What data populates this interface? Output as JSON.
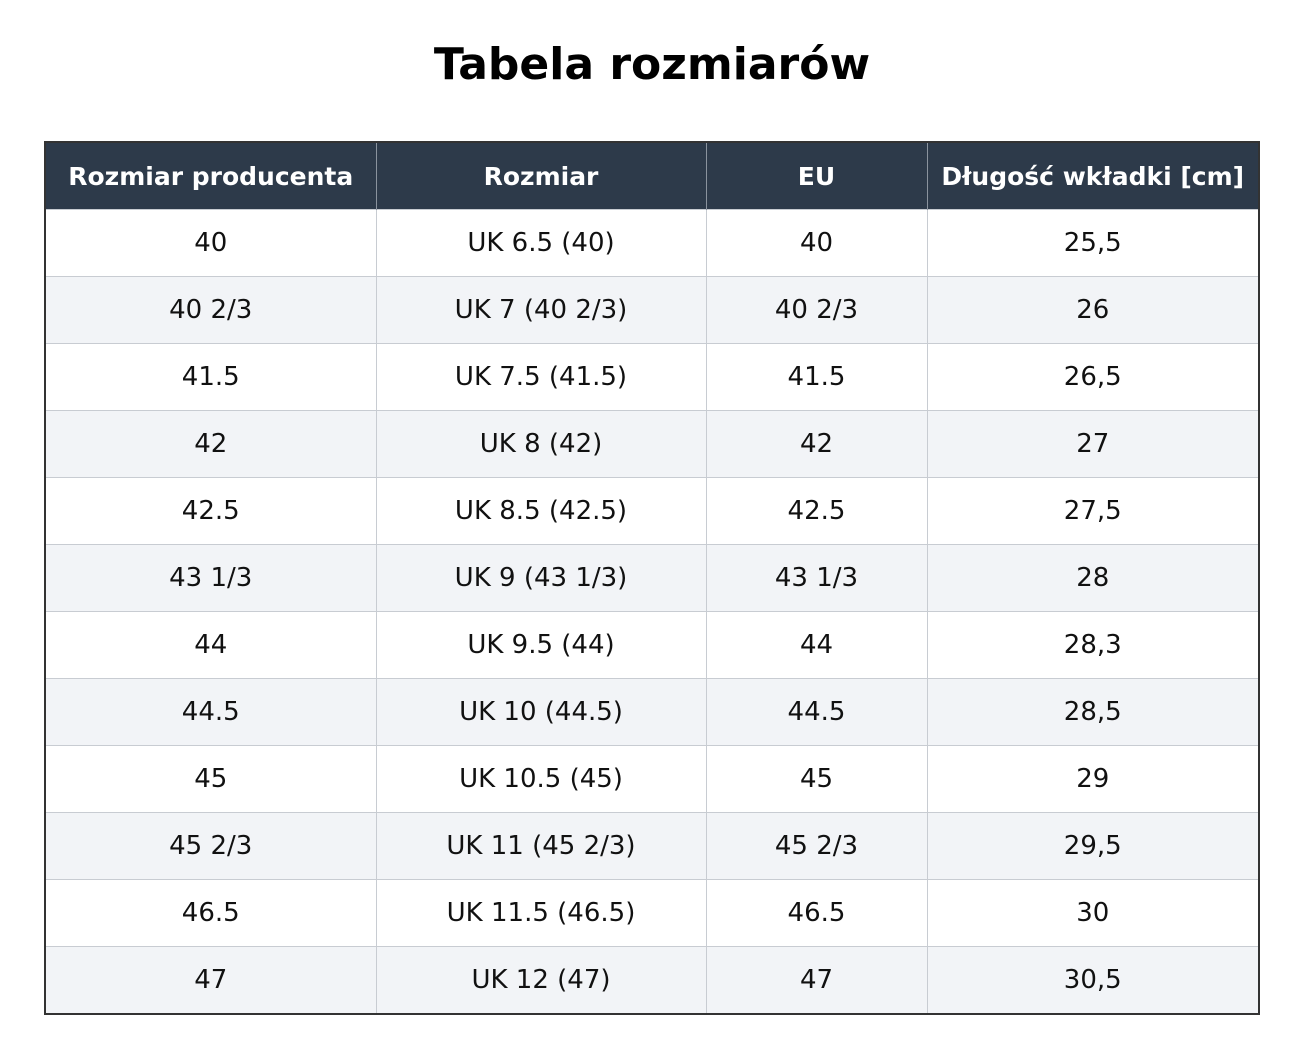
{
  "header": {
    "title": "Tabela rozmiarów"
  },
  "table": {
    "columns": [
      "Rozmiar producenta",
      "Rozmiar",
      "EU",
      "Długość wkładki [cm]"
    ],
    "rows": [
      [
        "40",
        "UK 6.5 (40)",
        "40",
        "25,5"
      ],
      [
        "40 2/3",
        "UK 7 (40 2/3)",
        "40 2/3",
        "26"
      ],
      [
        "41.5",
        "UK 7.5 (41.5)",
        "41.5",
        "26,5"
      ],
      [
        "42",
        "UK 8 (42)",
        "42",
        "27"
      ],
      [
        "42.5",
        "UK 8.5 (42.5)",
        "42.5",
        "27,5"
      ],
      [
        "43 1/3",
        "UK 9 (43 1/3)",
        "43 1/3",
        "28"
      ],
      [
        "44",
        "UK 9.5 (44)",
        "44",
        "28,3"
      ],
      [
        "44.5",
        "UK 10 (44.5)",
        "44.5",
        "28,5"
      ],
      [
        "45",
        "UK 10.5 (45)",
        "45",
        "29"
      ],
      [
        "45 2/3",
        "UK 11 (45 2/3)",
        "45 2/3",
        "29,5"
      ],
      [
        "46.5",
        "UK 11.5 (46.5)",
        "46.5",
        "30"
      ],
      [
        "47",
        "UK 12 (47)",
        "47",
        "30,5"
      ]
    ]
  }
}
